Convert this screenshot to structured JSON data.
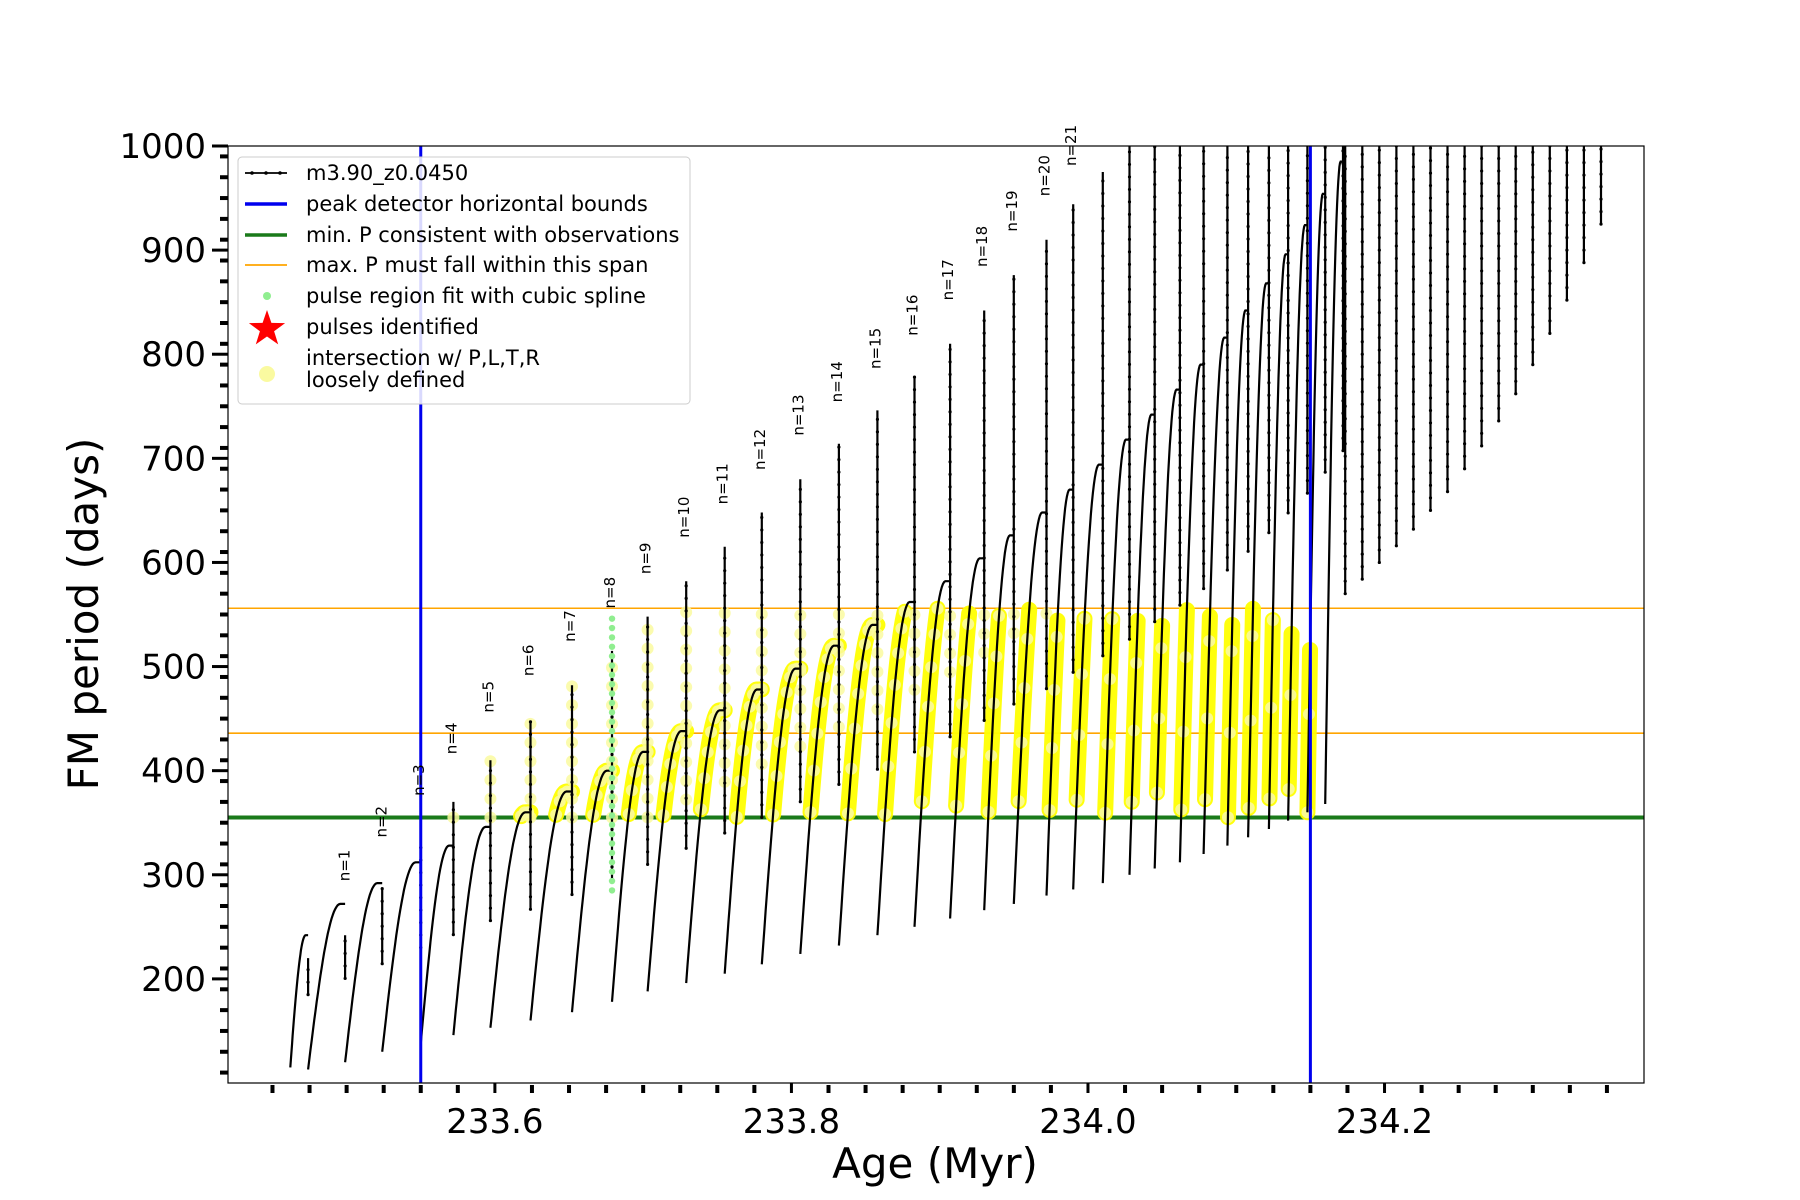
{
  "chart_data": {
    "type": "line",
    "xlabel": "Age (Myr)",
    "ylabel": "FM period (days)",
    "xlim": [
      233.42,
      234.375
    ],
    "ylim": [
      100,
      1000
    ],
    "xticks": [
      233.6,
      233.8,
      234.0,
      234.2
    ],
    "xtick_labels": [
      "233.6",
      "233.8",
      "234.0",
      "234.2"
    ],
    "yticks": [
      200,
      300,
      400,
      500,
      600,
      700,
      800,
      900,
      1000
    ],
    "ytick_labels": [
      "200",
      "300",
      "400",
      "500",
      "600",
      "700",
      "800",
      "900",
      "1000"
    ],
    "grid": false,
    "legend_position": "top-left",
    "legend": [
      {
        "label": "m3.90_z0.0450",
        "kind": "line-marker",
        "color": "#000000"
      },
      {
        "label": "peak detector horizontal bounds",
        "kind": "line",
        "color": "#0000ee"
      },
      {
        "label": "min. P consistent with observations",
        "kind": "line",
        "color": "#1a7a1a"
      },
      {
        "label": "max. P must fall within this span",
        "kind": "line",
        "color": "#ffa500"
      },
      {
        "label": "pulse region fit with cubic spline",
        "kind": "dot",
        "color": "#90ee90"
      },
      {
        "label": "pulses identified",
        "kind": "star",
        "color": "#ff0000"
      },
      {
        "label": "intersection w/ P,L,T,R",
        "label2": "loosely defined",
        "kind": "dot",
        "color": "#fafaa0"
      }
    ],
    "vertical_lines": [
      {
        "x": 233.55,
        "color": "#0000ee"
      },
      {
        "x": 234.15,
        "color": "#0000ee"
      }
    ],
    "horizontal_lines": [
      {
        "y": 355,
        "color": "#1a7a1a"
      },
      {
        "y": 436,
        "color": "#ffa500"
      },
      {
        "y": 556,
        "color": "#ffa500"
      }
    ],
    "pulse_labels": [
      {
        "label": "n=1",
        "x": 233.5,
        "y": 288
      },
      {
        "label": "n=2",
        "x": 233.525,
        "y": 330
      },
      {
        "label": "n=3",
        "x": 233.55,
        "y": 370
      },
      {
        "label": "n=4",
        "x": 233.572,
        "y": 410
      },
      {
        "label": "n=5",
        "x": 233.597,
        "y": 450
      },
      {
        "label": "n=6",
        "x": 233.624,
        "y": 485
      },
      {
        "label": "n=7",
        "x": 233.652,
        "y": 518
      },
      {
        "label": "n=8",
        "x": 233.679,
        "y": 550
      },
      {
        "label": "n=9",
        "x": 233.703,
        "y": 583
      },
      {
        "label": "n=10",
        "x": 233.729,
        "y": 618
      },
      {
        "label": "n=11",
        "x": 233.755,
        "y": 650
      },
      {
        "label": "n=12",
        "x": 233.78,
        "y": 683
      },
      {
        "label": "n=13",
        "x": 233.806,
        "y": 716
      },
      {
        "label": "n=14",
        "x": 233.832,
        "y": 748
      },
      {
        "label": "n=15",
        "x": 233.858,
        "y": 780
      },
      {
        "label": "n=16",
        "x": 233.883,
        "y": 812
      },
      {
        "label": "n=17",
        "x": 233.907,
        "y": 846
      },
      {
        "label": "n=18",
        "x": 233.93,
        "y": 878
      },
      {
        "label": "n=19",
        "x": 233.95,
        "y": 912
      },
      {
        "label": "n=20",
        "x": 233.972,
        "y": 946
      },
      {
        "label": "n=21",
        "x": 233.99,
        "y": 975
      }
    ],
    "series_name": "m3.90_z0.0450",
    "pulses": [
      {
        "t0": 233.462,
        "t1": 233.474,
        "base": 115,
        "top": 242,
        "spike": 220
      },
      {
        "t0": 233.474,
        "t1": 233.499,
        "base": 113,
        "top": 272,
        "spike": 242
      },
      {
        "t0": 233.499,
        "t1": 233.524,
        "base": 120,
        "top": 292,
        "spike": 288
      },
      {
        "t0": 233.524,
        "t1": 233.55,
        "base": 130,
        "top": 312,
        "spike": 330
      },
      {
        "t0": 233.55,
        "t1": 233.572,
        "base": 138,
        "top": 328,
        "spike": 370
      },
      {
        "t0": 233.572,
        "t1": 233.597,
        "base": 146,
        "top": 346,
        "spike": 410
      },
      {
        "t0": 233.597,
        "t1": 233.624,
        "base": 153,
        "top": 360,
        "spike": 448
      },
      {
        "t0": 233.624,
        "t1": 233.652,
        "base": 160,
        "top": 380,
        "spike": 482
      },
      {
        "t0": 233.652,
        "t1": 233.679,
        "base": 168,
        "top": 400,
        "spike": 515
      },
      {
        "t0": 233.679,
        "t1": 233.703,
        "base": 178,
        "top": 418,
        "spike": 548
      },
      {
        "t0": 233.703,
        "t1": 233.729,
        "base": 188,
        "top": 438,
        "spike": 582
      },
      {
        "t0": 233.729,
        "t1": 233.755,
        "base": 196,
        "top": 458,
        "spike": 615
      },
      {
        "t0": 233.755,
        "t1": 233.78,
        "base": 205,
        "top": 478,
        "spike": 648
      },
      {
        "t0": 233.78,
        "t1": 233.806,
        "base": 214,
        "top": 498,
        "spike": 680
      },
      {
        "t0": 233.806,
        "t1": 233.832,
        "base": 224,
        "top": 520,
        "spike": 714
      },
      {
        "t0": 233.832,
        "t1": 233.858,
        "base": 232,
        "top": 540,
        "spike": 746
      },
      {
        "t0": 233.858,
        "t1": 233.883,
        "base": 242,
        "top": 562,
        "spike": 778
      },
      {
        "t0": 233.883,
        "t1": 233.907,
        "base": 250,
        "top": 582,
        "spike": 810
      },
      {
        "t0": 233.907,
        "t1": 233.93,
        "base": 258,
        "top": 604,
        "spike": 842
      },
      {
        "t0": 233.93,
        "t1": 233.95,
        "base": 266,
        "top": 626,
        "spike": 876
      },
      {
        "t0": 233.95,
        "t1": 233.972,
        "base": 272,
        "top": 648,
        "spike": 910
      },
      {
        "t0": 233.972,
        "t1": 233.99,
        "base": 280,
        "top": 670,
        "spike": 944
      },
      {
        "t0": 233.99,
        "t1": 234.01,
        "base": 286,
        "top": 694,
        "spike": 975
      },
      {
        "t0": 234.01,
        "t1": 234.028,
        "base": 292,
        "top": 718,
        "spike": 1000
      },
      {
        "t0": 234.028,
        "t1": 234.045,
        "base": 300,
        "top": 742,
        "spike": 1000
      },
      {
        "t0": 234.045,
        "t1": 234.062,
        "base": 306,
        "top": 766,
        "spike": 1000
      },
      {
        "t0": 234.062,
        "t1": 234.078,
        "base": 312,
        "top": 790,
        "spike": 1000
      },
      {
        "t0": 234.078,
        "t1": 234.094,
        "base": 320,
        "top": 816,
        "spike": 1000
      },
      {
        "t0": 234.094,
        "t1": 234.108,
        "base": 328,
        "top": 842,
        "spike": 1000
      },
      {
        "t0": 234.108,
        "t1": 234.122,
        "base": 336,
        "top": 868,
        "spike": 1000
      },
      {
        "t0": 234.122,
        "t1": 234.135,
        "base": 344,
        "top": 896,
        "spike": 1000
      },
      {
        "t0": 234.135,
        "t1": 234.148,
        "base": 352,
        "top": 924,
        "spike": 1000
      },
      {
        "t0": 234.148,
        "t1": 234.16,
        "base": 360,
        "top": 954,
        "spike": 1000
      },
      {
        "t0": 234.16,
        "t1": 234.172,
        "base": 368,
        "top": 985,
        "spike": 1000
      }
    ],
    "late_spikes": [
      {
        "x": 234.1735,
        "base": 570
      },
      {
        "x": 234.185,
        "base": 584
      },
      {
        "x": 234.1965,
        "base": 600
      },
      {
        "x": 234.208,
        "base": 616
      },
      {
        "x": 234.2195,
        "base": 632
      },
      {
        "x": 234.231,
        "base": 650
      },
      {
        "x": 234.2425,
        "base": 668
      },
      {
        "x": 234.254,
        "base": 690
      },
      {
        "x": 234.2655,
        "base": 712
      },
      {
        "x": 234.277,
        "base": 736
      },
      {
        "x": 234.2885,
        "base": 762
      },
      {
        "x": 234.3,
        "base": 790
      },
      {
        "x": 234.3115,
        "base": 820
      },
      {
        "x": 234.323,
        "base": 852
      },
      {
        "x": 234.3345,
        "base": 888
      },
      {
        "x": 234.346,
        "base": 925
      }
    ],
    "spline_region": {
      "x": 233.679,
      "y_min": 285,
      "y_max": 548
    }
  }
}
